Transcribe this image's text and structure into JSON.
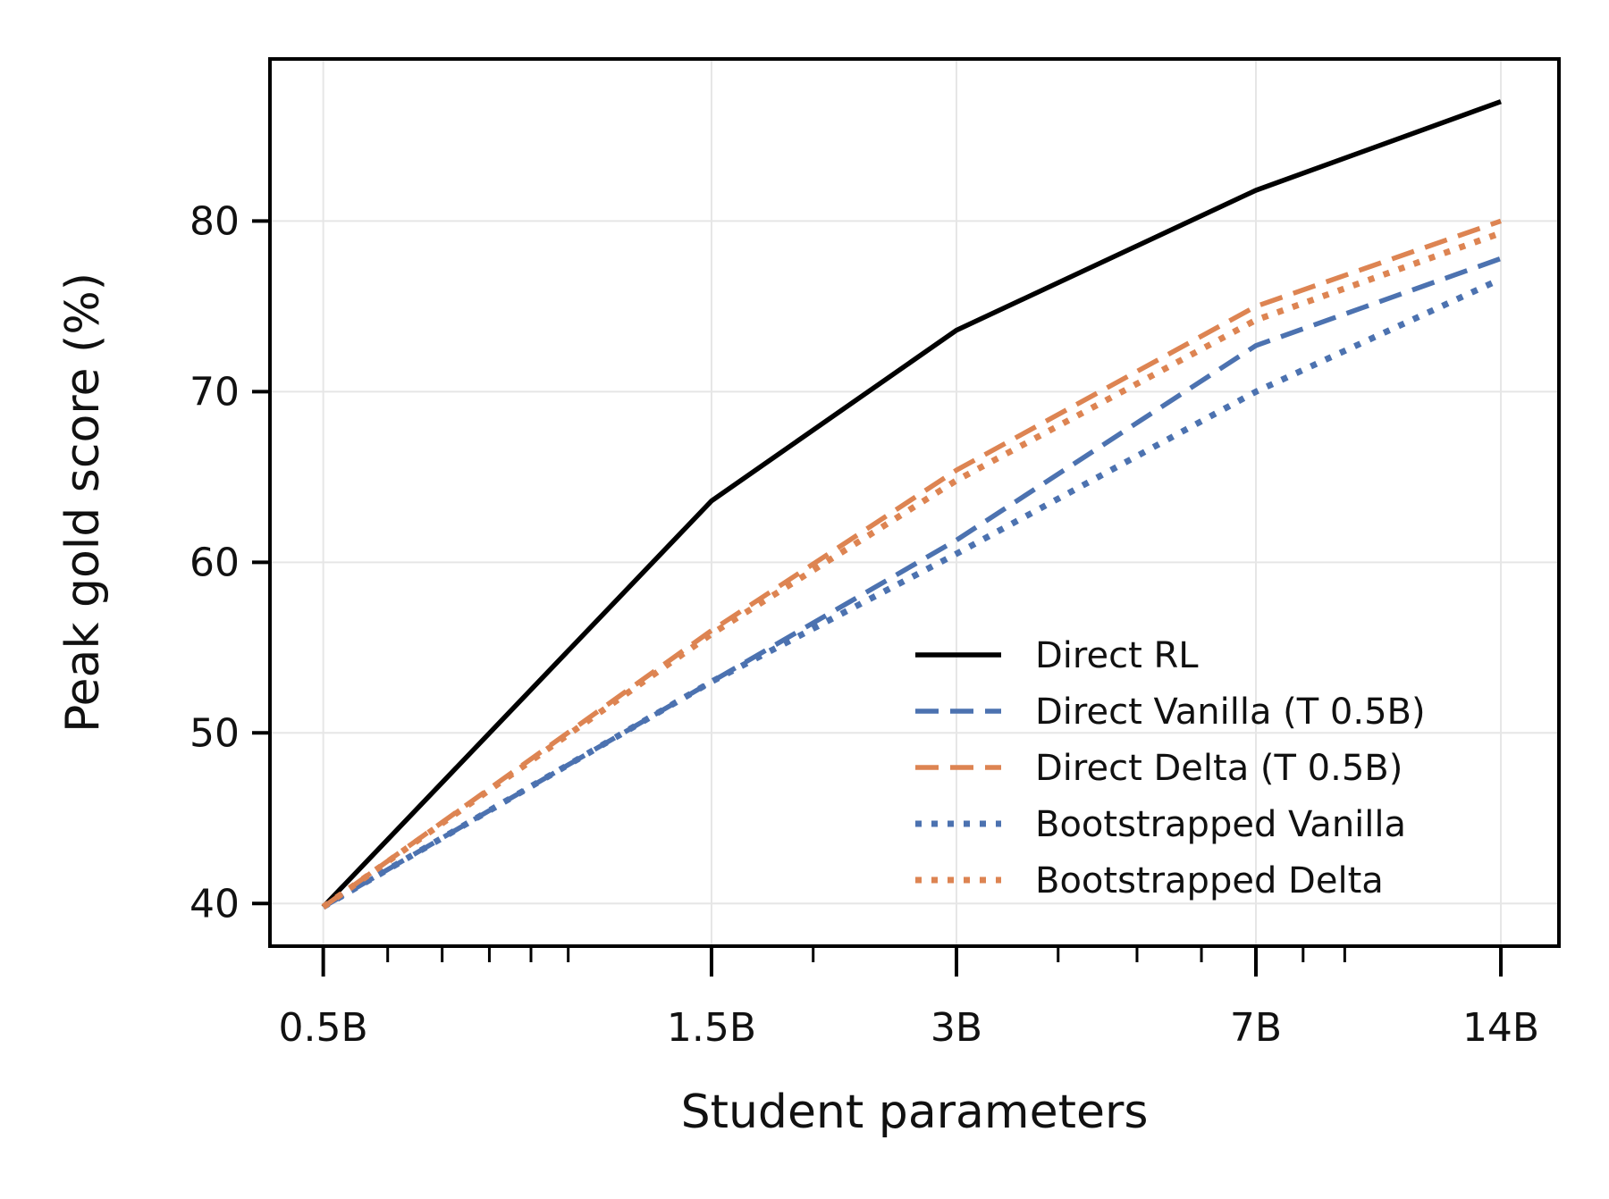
{
  "chart_data": {
    "type": "line",
    "title": "",
    "xlabel": "Student parameters",
    "ylabel": "Peak gold score (%)",
    "x_scale": "log",
    "x": [
      0.5,
      1.5,
      3,
      7,
      14
    ],
    "x_tick_labels": [
      "0.5B",
      "1.5B",
      "3B",
      "7B",
      "14B"
    ],
    "xlim": [
      0.43,
      16.5
    ],
    "ylim": [
      37.5,
      89.5
    ],
    "y_ticks": [
      40,
      50,
      60,
      70,
      80
    ],
    "grid": true,
    "legend_position": "lower-right",
    "series": [
      {
        "name": "Direct RL",
        "color": "#000000",
        "style": "solid",
        "values": [
          39.8,
          63.6,
          73.6,
          81.8,
          87.0
        ]
      },
      {
        "name": "Direct Vanilla (T 0.5B)",
        "color": "#4c72b0",
        "style": "dashed",
        "values": [
          39.8,
          53.0,
          61.3,
          72.7,
          77.8
        ]
      },
      {
        "name": "Direct Delta (T 0.5B)",
        "color": "#dd8452",
        "style": "dashed",
        "values": [
          39.8,
          56.0,
          65.4,
          75.0,
          80.0
        ]
      },
      {
        "name": "Bootstrapped Vanilla",
        "color": "#4c72b0",
        "style": "dotted",
        "values": [
          39.8,
          53.0,
          60.5,
          70.0,
          76.6
        ]
      },
      {
        "name": "Bootstrapped Delta",
        "color": "#dd8452",
        "style": "dotted",
        "values": [
          39.8,
          55.8,
          64.8,
          74.2,
          79.3
        ]
      }
    ]
  }
}
